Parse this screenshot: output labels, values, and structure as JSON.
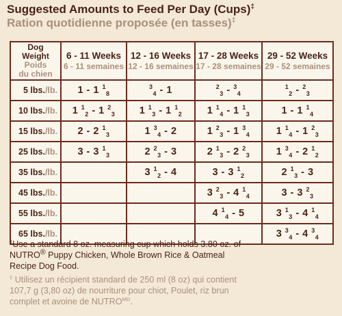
{
  "title": {
    "en": "Suggested Amounts to Feed Per Day (Cups)",
    "fr": "Ration quotidienne proposée (en tasses)",
    "mark": "‡"
  },
  "table": {
    "header": {
      "dog_en_1": "Dog",
      "dog_en_2": "Weight",
      "dog_fr_1": "Poids",
      "dog_fr_2": "du chien",
      "columns": [
        {
          "en": "6 - 11 Weeks",
          "fr": "6 - 11 semaines"
        },
        {
          "en": "12 - 16 Weeks",
          "fr": "12 - 16 semaines"
        },
        {
          "en": "17 - 28 Weeks",
          "fr": "17 - 28 semaines"
        },
        {
          "en": "29 - 52 Weeks",
          "fr": "29 - 52 semaines"
        }
      ]
    },
    "rows": [
      {
        "w": "5 lbs.",
        "u": "/lb.",
        "c": [
          {
            "a": "1 - 1 ",
            "n": "1",
            "d": "8"
          },
          {
            "a": "",
            "n": "3",
            "d": "4",
            "b": " - 1"
          },
          {
            "a": "",
            "n": "2",
            "d": "3",
            "b": " - ",
            "n2": "3",
            "d2": "4"
          },
          {
            "a": "",
            "n": "1",
            "d": "2",
            "b": " - ",
            "n2": "2",
            "d2": "3"
          }
        ]
      },
      {
        "w": "10 lbs.",
        "u": "/lb.",
        "c": [
          {
            "a": "1 ",
            "n": "1",
            "d": "2",
            "b": " - 1 ",
            "n2": "2",
            "d2": "3"
          },
          {
            "a": "1 ",
            "n": "1",
            "d": "3",
            "b": " - 1 ",
            "n2": "1",
            "d2": "2"
          },
          {
            "a": "1 ",
            "n": "1",
            "d": "4",
            "b": " - 1 ",
            "n2": "1",
            "d2": "3"
          },
          {
            "a": "1 - 1 ",
            "n": "1",
            "d": "4"
          }
        ]
      },
      {
        "w": "15 lbs.",
        "u": "/lb.",
        "c": [
          {
            "a": "2 - 2 ",
            "n": "1",
            "d": "3"
          },
          {
            "a": "1 ",
            "n": "3",
            "d": "4",
            "b": " - 2"
          },
          {
            "a": "1 ",
            "n": "2",
            "d": "3",
            "b": " - 1 ",
            "n2": "3",
            "d2": "4"
          },
          {
            "a": "1 ",
            "n": "1",
            "d": "4",
            "b": " - 1 ",
            "n2": "2",
            "d2": "3"
          }
        ]
      },
      {
        "w": "25 lbs.",
        "u": "/lb.",
        "c": [
          {
            "a": "3 - 3 ",
            "n": "1",
            "d": "3"
          },
          {
            "a": "2 ",
            "n": "2",
            "d": "3",
            "b": " - 3"
          },
          {
            "a": "2 ",
            "n": "1",
            "d": "3",
            "b": " - 2 ",
            "n2": "2",
            "d2": "3"
          },
          {
            "a": "1 ",
            "n": "3",
            "d": "4",
            "b": " - 2 ",
            "n2": "1",
            "d2": "2"
          }
        ]
      },
      {
        "w": "35 lbs.",
        "u": "/lb.",
        "c": [
          null,
          {
            "a": "3 ",
            "n": "1",
            "d": "2",
            "b": " - 4"
          },
          {
            "a": "3 - 3 ",
            "n": "1",
            "d": "2"
          },
          {
            "a": "2 ",
            "n": "1",
            "d": "3",
            "b": " - 3"
          }
        ]
      },
      {
        "w": "45 lbs.",
        "u": "/lb.",
        "c": [
          null,
          null,
          {
            "a": "3 ",
            "n": "2",
            "d": "3",
            "b": " - 4 ",
            "n2": "1",
            "d2": "4"
          },
          {
            "a": "3 - 3 ",
            "n": "2",
            "d": "3"
          }
        ]
      },
      {
        "w": "55 lbs.",
        "u": "/lb.",
        "c": [
          null,
          null,
          {
            "a": "4 ",
            "n": "1",
            "d": "4",
            "b": " - 5"
          },
          {
            "a": "3 ",
            "n": "1",
            "d": "3",
            "b": " - 4 ",
            "n2": "1",
            "d2": "4"
          }
        ]
      },
      {
        "w": "65 lbs.",
        "u": "/lb.",
        "c": [
          null,
          null,
          null,
          {
            "a": "3 ",
            "n": "3",
            "d": "4",
            "b": " - 4 ",
            "n2": "3",
            "d2": "4"
          }
        ]
      }
    ]
  },
  "footnote": {
    "mark": "‡",
    "en_1": "Use a standard 8 oz. measuring cup which holds 3.80 oz. of",
    "en_brand": "NUTRO",
    "en_reg": "®",
    "en_2": " Puppy Chicken, Whole Brown Rice & Oatmeal",
    "en_3": "Recipe Dog Food.",
    "fr_1": " Utilisez un récipient standard de 250 ml (8 oz) qui contient",
    "fr_2": "107,7 g (3,80 oz) de nourriture pour chiot, Poulet, riz brun",
    "fr_3": "complet et avoine de NUTRO",
    "fr_md": "MD",
    "fr_end": "."
  },
  "colors": {
    "text_dark": "#4a2216",
    "text_light": "#a9907c",
    "border": "#6b2a1c",
    "background": "#f3e9d6"
  }
}
